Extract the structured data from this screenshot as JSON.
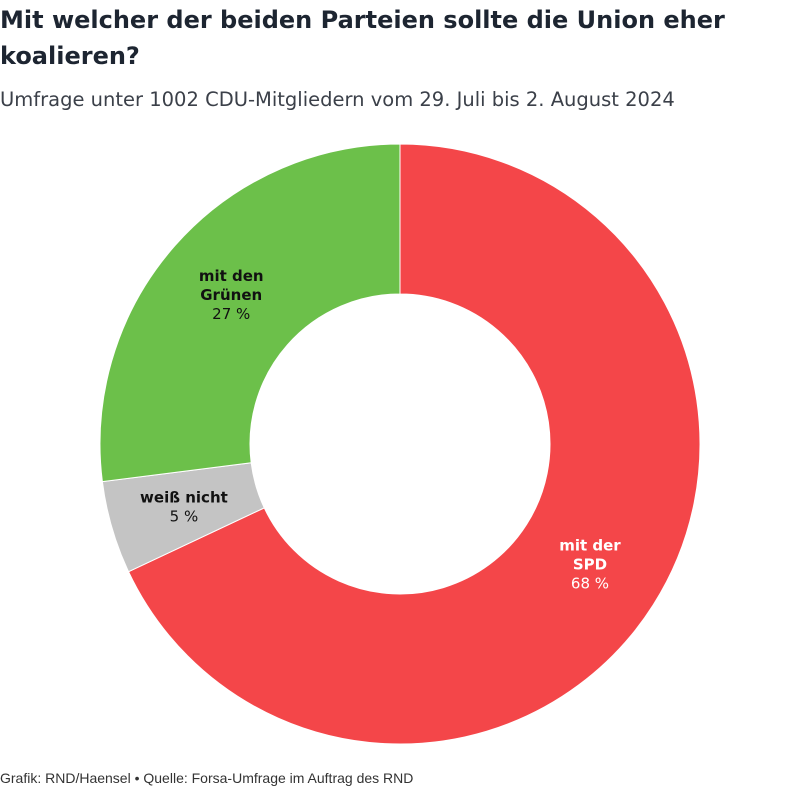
{
  "header": {
    "title": "Mit welcher der beiden Parteien sollte die Union eher koalieren?",
    "subtitle": "Umfrage unter 1002 CDU-Mitgliedern vom 29. Juli bis 2. August 2024"
  },
  "chart_data": {
    "type": "pie",
    "variant": "donut",
    "unit": "%",
    "slices": [
      {
        "label_lines": [
          "mit der",
          "SPD"
        ],
        "value": 68,
        "value_text": "68 %",
        "color": "#f44649",
        "text_color": "#ffffff"
      },
      {
        "label_lines": [
          "weiß nicht"
        ],
        "value": 5,
        "value_text": "5 %",
        "color": "#c4c4c4",
        "text_color": "#111111"
      },
      {
        "label_lines": [
          "mit den",
          "Grünen"
        ],
        "value": 27,
        "value_text": "27 %",
        "color": "#6cc04a",
        "text_color": "#111111"
      }
    ]
  },
  "footer": {
    "text": "Grafik: RND/Haensel • Quelle: Forsa-Umfrage im Auftrag des RND"
  }
}
